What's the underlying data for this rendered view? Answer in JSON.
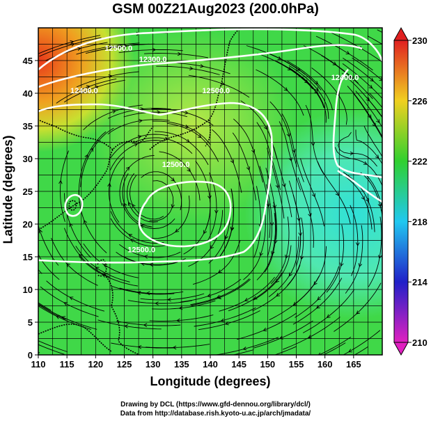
{
  "title": "GSM 00Z21Aug2023 (200.0hPa)",
  "x_axis": {
    "label": "Longitude (degrees)",
    "range": [
      110,
      170
    ],
    "ticks": [
      110,
      115,
      120,
      125,
      130,
      135,
      140,
      145,
      150,
      155,
      160,
      165
    ]
  },
  "y_axis": {
    "label": "Latitude (degrees)",
    "range": [
      0,
      50
    ],
    "ticks": [
      0,
      5,
      10,
      15,
      20,
      25,
      30,
      35,
      40,
      45
    ]
  },
  "colorbar": {
    "range": [
      210,
      230
    ],
    "ticks": [
      210,
      214,
      218,
      222,
      226,
      230
    ],
    "scheme": "magenta-blue-cyan-green-yellow-red"
  },
  "contour_labels": [
    {
      "text": "12500.0",
      "lon": 124,
      "lat": 46.5
    },
    {
      "text": "12300.0",
      "lon": 130,
      "lat": 44.8
    },
    {
      "text": "12400.0",
      "lon": 118,
      "lat": 40
    },
    {
      "text": "12500.0",
      "lon": 141,
      "lat": 40
    },
    {
      "text": "12500.0",
      "lon": 134,
      "lat": 28.7
    },
    {
      "text": "12500.0",
      "lon": 128,
      "lat": 15.7
    },
    {
      "text": "12400.0",
      "lon": 163.5,
      "lat": 42
    }
  ],
  "credits": {
    "line1": "Drawing by DCL (https://www.gfd-dennou.org/library/dcl/)",
    "line2": "Data from http://database.rish.kyoto-u.ac.jp/arch/jmadata/"
  }
}
